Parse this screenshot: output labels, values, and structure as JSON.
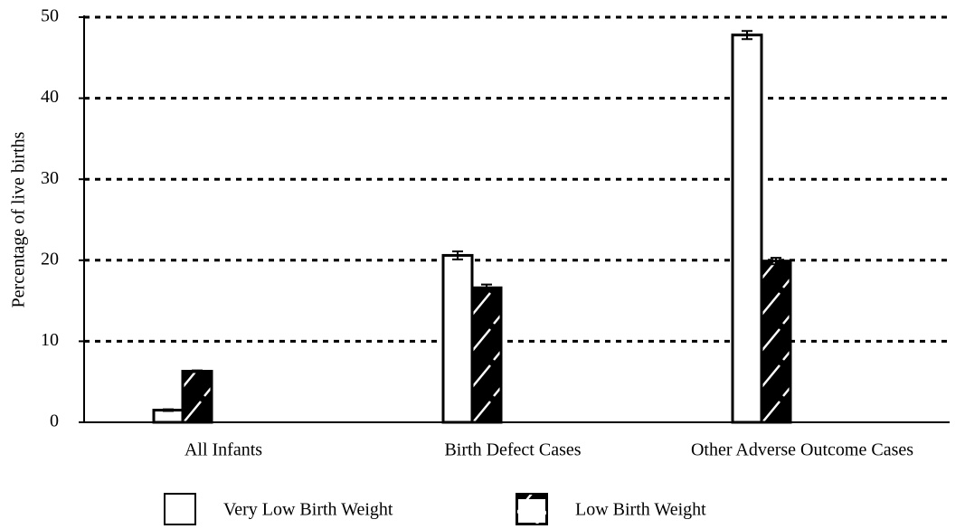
{
  "chart_data": {
    "type": "bar",
    "y_label": "Percentage of live births",
    "categories": [
      "All Infants",
      "Birth Defect Cases",
      "Other Adverse Outcome Cases"
    ],
    "series": [
      {
        "name": "Very Low Birth Weight",
        "color": "#ffffff",
        "hatch": false,
        "values": [
          1.5,
          20.6,
          47.8
        ],
        "errors": [
          0.1,
          0.5,
          0.5
        ]
      },
      {
        "name": "Low Birth Weight",
        "color": "#000000",
        "hatch": true,
        "values": [
          6.3,
          16.6,
          19.9
        ],
        "errors": [
          0.1,
          0.4,
          0.4
        ]
      }
    ],
    "ylim": [
      0,
      50
    ],
    "yticks": [
      0,
      10,
      20,
      30,
      40,
      50
    ],
    "grid": true
  }
}
